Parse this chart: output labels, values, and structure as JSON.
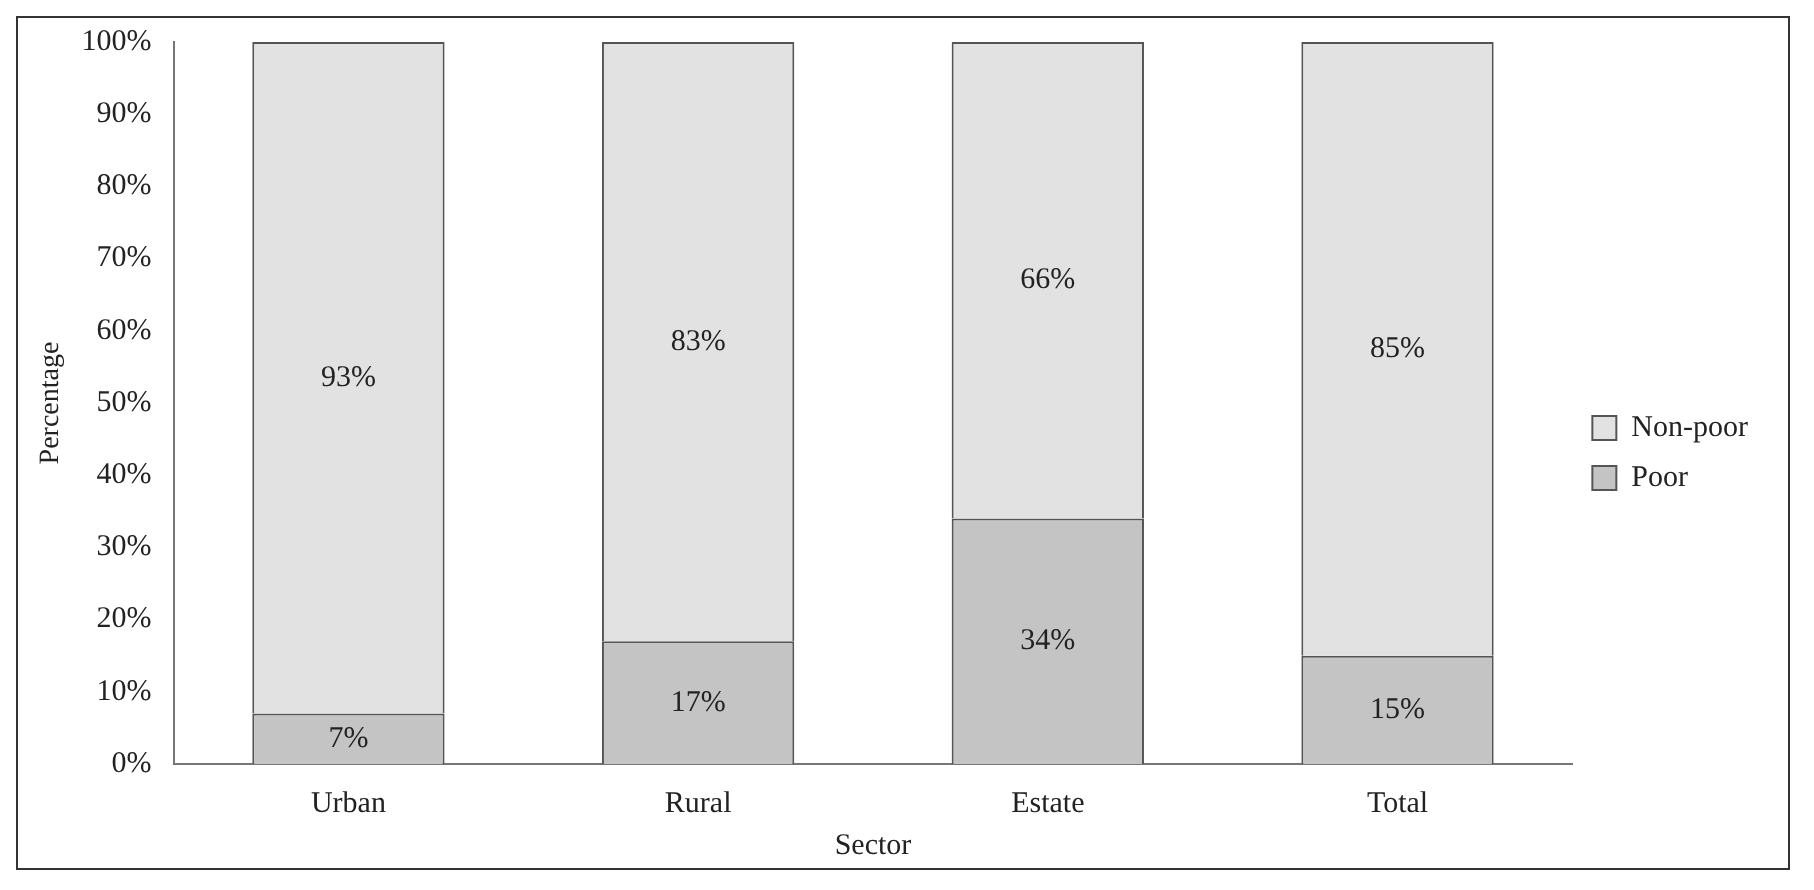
{
  "chart_data": {
    "type": "bar",
    "xlabel": "Sector",
    "ylabel": "Percentage",
    "categories": [
      "Urban",
      "Rural",
      "Estate",
      "Total"
    ],
    "stacked": true,
    "legend": "right",
    "ylim": [
      0,
      100
    ],
    "yticks": [
      {
        "value": 0,
        "label": "0%"
      },
      {
        "value": 10,
        "label": "10%"
      },
      {
        "value": 20,
        "label": "20%"
      },
      {
        "value": 30,
        "label": "30%"
      },
      {
        "value": 40,
        "label": "40%"
      },
      {
        "value": 50,
        "label": "50%"
      },
      {
        "value": 60,
        "label": "60%"
      },
      {
        "value": 70,
        "label": "70%"
      },
      {
        "value": 80,
        "label": "80%"
      },
      {
        "value": 90,
        "label": "90%"
      },
      {
        "value": 100,
        "label": "100%"
      }
    ],
    "series": [
      {
        "name": "Poor",
        "color": "#c4c4c4",
        "values": [
          7,
          17,
          34,
          15
        ],
        "value_labels": [
          "7%",
          "17%",
          "34%",
          "15%"
        ]
      },
      {
        "name": "Non-poor",
        "color": "#e2e2e2",
        "values": [
          93,
          83,
          66,
          85
        ],
        "value_labels": [
          "93%",
          "83%",
          "66%",
          "85%"
        ]
      }
    ]
  }
}
